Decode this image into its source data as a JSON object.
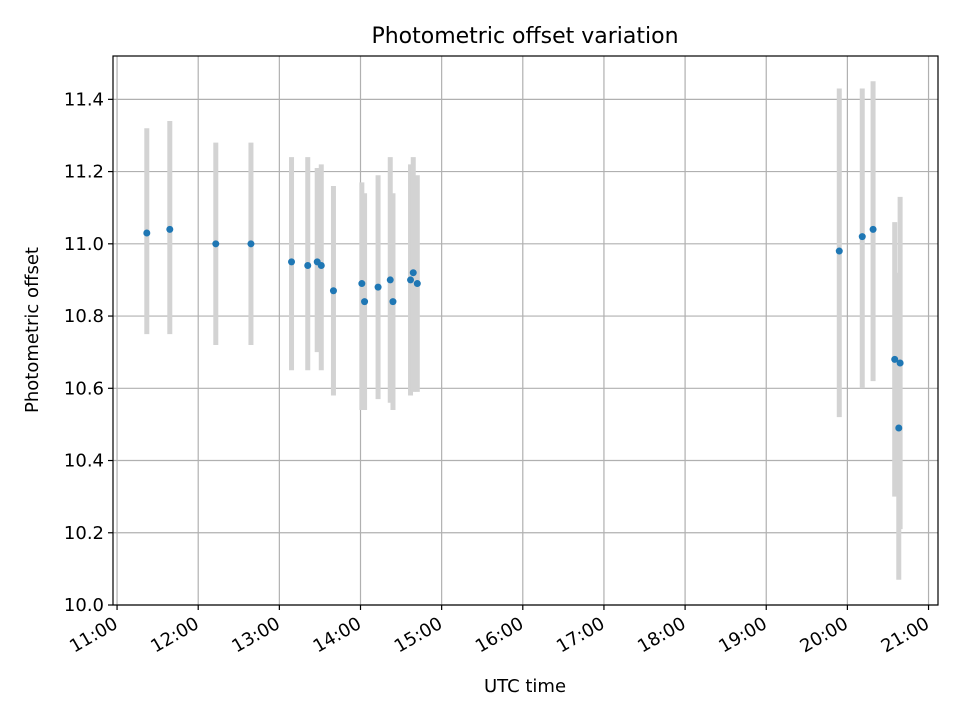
{
  "chart_data": {
    "type": "scatter",
    "title": "Photometric offset variation",
    "xlabel": "UTC time",
    "ylabel": "Photometric offset",
    "xlim": [
      "10:57",
      "21:07"
    ],
    "ylim": [
      10.0,
      11.52
    ],
    "grid": true,
    "x_ticks": [
      "11:00",
      "12:00",
      "13:00",
      "14:00",
      "15:00",
      "16:00",
      "17:00",
      "18:00",
      "19:00",
      "20:00",
      "21:00"
    ],
    "y_ticks": [
      10.0,
      10.2,
      10.4,
      10.6,
      10.8,
      11.0,
      11.2,
      11.4
    ],
    "colors": {
      "point": "#1f77b4",
      "errorbar": "#d3d3d3",
      "grid": "#b0b0b0"
    },
    "points": [
      {
        "t": "11:22",
        "y": 11.03,
        "lo": 10.75,
        "hi": 11.32
      },
      {
        "t": "11:39",
        "y": 11.04,
        "lo": 10.75,
        "hi": 11.34
      },
      {
        "t": "12:13",
        "y": 11.0,
        "lo": 10.72,
        "hi": 11.28
      },
      {
        "t": "12:39",
        "y": 11.0,
        "lo": 10.72,
        "hi": 11.28
      },
      {
        "t": "13:09",
        "y": 10.95,
        "lo": 10.65,
        "hi": 11.24
      },
      {
        "t": "13:21",
        "y": 10.94,
        "lo": 10.65,
        "hi": 11.24
      },
      {
        "t": "13:28",
        "y": 10.95,
        "lo": 10.7,
        "hi": 11.21
      },
      {
        "t": "13:31",
        "y": 10.94,
        "lo": 10.65,
        "hi": 11.22
      },
      {
        "t": "13:40",
        "y": 10.87,
        "lo": 10.58,
        "hi": 11.16
      },
      {
        "t": "14:01",
        "y": 10.89,
        "lo": 10.54,
        "hi": 11.17
      },
      {
        "t": "14:03",
        "y": 10.84,
        "lo": 10.54,
        "hi": 11.14
      },
      {
        "t": "14:13",
        "y": 10.88,
        "lo": 10.57,
        "hi": 11.19
      },
      {
        "t": "14:22",
        "y": 10.9,
        "lo": 10.56,
        "hi": 11.24
      },
      {
        "t": "14:24",
        "y": 10.84,
        "lo": 10.54,
        "hi": 11.14
      },
      {
        "t": "14:37",
        "y": 10.9,
        "lo": 10.58,
        "hi": 11.22
      },
      {
        "t": "14:39",
        "y": 10.92,
        "lo": 10.59,
        "hi": 11.24
      },
      {
        "t": "14:42",
        "y": 10.89,
        "lo": 10.59,
        "hi": 11.19
      },
      {
        "t": "19:54",
        "y": 10.98,
        "lo": 10.52,
        "hi": 11.43
      },
      {
        "t": "20:11",
        "y": 11.02,
        "lo": 10.6,
        "hi": 11.43
      },
      {
        "t": "20:19",
        "y": 11.04,
        "lo": 10.62,
        "hi": 11.45
      },
      {
        "t": "20:35",
        "y": 10.68,
        "lo": 10.3,
        "hi": 11.06
      },
      {
        "t": "20:38",
        "y": 10.49,
        "lo": 10.07,
        "hi": 10.92
      },
      {
        "t": "20:39",
        "y": 10.67,
        "lo": 10.21,
        "hi": 11.13
      }
    ]
  }
}
